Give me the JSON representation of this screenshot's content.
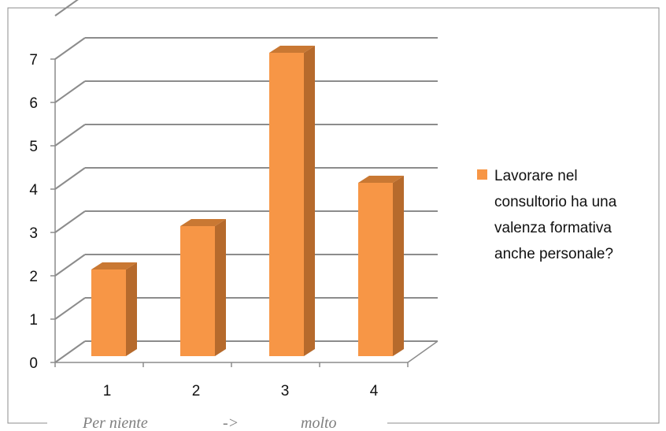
{
  "chart_data": {
    "type": "bar",
    "categories": [
      "1",
      "2",
      "3",
      "4"
    ],
    "series": [
      {
        "name": "Lavorare nel consultorio ha una valenza formativa anche personale?",
        "values": [
          2,
          3,
          7,
          4
        ]
      }
    ],
    "yticks": [
      "0",
      "1",
      "2",
      "3",
      "4",
      "5",
      "6",
      "7"
    ],
    "ylim": [
      0,
      7
    ],
    "grid": true,
    "legend_position": "right",
    "legend_lines": [
      "Lavorare nel",
      "consultorio ha una",
      "valenza formativa",
      "anche personale?"
    ],
    "colors": {
      "bar_front": "#f79646",
      "bar_side": "#b66a2c",
      "bar_top": "#c97833",
      "grid": "#8c8c8c"
    }
  },
  "caption": {
    "left": "Per niente",
    "middle": "->",
    "right": "molto"
  }
}
